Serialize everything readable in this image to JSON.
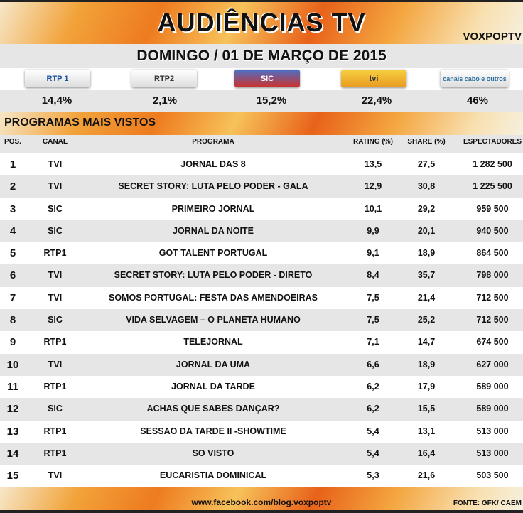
{
  "header": {
    "title": "AUDIÊNCIAS TV",
    "brand": "VOXPOPTV",
    "date": "DOMINGO / 01 DE MARÇO DE 2015"
  },
  "channels": [
    {
      "logo": "RTP 1",
      "share": "14,4%"
    },
    {
      "logo": "RTP2",
      "share": "2,1%"
    },
    {
      "logo": "SIC",
      "share": "15,2%"
    },
    {
      "logo": "tvi",
      "share": "22,4%"
    },
    {
      "logo": "canais cabo e outros",
      "share": "46%"
    }
  ],
  "section_title": "PROGRAMAS MAIS VISTOS",
  "columns": [
    "POS.",
    "CANAL",
    "PROGRAMA",
    "RATING (%)",
    "SHARE (%)",
    "ESPECTADORES"
  ],
  "rows": [
    [
      "1",
      "TVI",
      "JORNAL DAS 8",
      "13,5",
      "27,5",
      "1 282 500"
    ],
    [
      "2",
      "TVI",
      "SECRET STORY: LUTA PELO PODER - GALA",
      "12,9",
      "30,8",
      "1 225 500"
    ],
    [
      "3",
      "SIC",
      "PRIMEIRO JORNAL",
      "10,1",
      "29,2",
      "959 500"
    ],
    [
      "4",
      "SIC",
      "JORNAL DA NOITE",
      "9,9",
      "20,1",
      "940 500"
    ],
    [
      "5",
      "RTP1",
      "GOT TALENT PORTUGAL",
      "9,1",
      "18,9",
      "864 500"
    ],
    [
      "6",
      "TVI",
      "SECRET STORY: LUTA PELO PODER - DIRETO",
      "8,4",
      "35,7",
      "798 000"
    ],
    [
      "7",
      "TVI",
      "SOMOS PORTUGAL: FESTA DAS AMENDOEIRAS",
      "7,5",
      "21,4",
      "712 500"
    ],
    [
      "8",
      "SIC",
      "VIDA SELVAGEM – O PLANETA HUMANO",
      "7,5",
      "25,2",
      "712 500"
    ],
    [
      "9",
      "RTP1",
      "TELEJORNAL",
      "7,1",
      "14,7",
      "674 500"
    ],
    [
      "10",
      "TVI",
      "JORNAL DA UMA",
      "6,6",
      "18,9",
      "627 000"
    ],
    [
      "11",
      "RTP1",
      "JORNAL DA TARDE",
      "6,2",
      "17,9",
      "589 000"
    ],
    [
      "12",
      "SIC",
      "ACHAS QUE SABES DANÇAR?",
      "6,2",
      "15,5",
      "589 000"
    ],
    [
      "13",
      "RTP1",
      "SESSAO DA TARDE II -SHOWTIME",
      "5,4",
      "13,1",
      "513 000"
    ],
    [
      "14",
      "RTP1",
      "SO VISTO",
      "5,4",
      "16,4",
      "513 000"
    ],
    [
      "15",
      "TVI",
      "EUCARISTIA DOMINICAL",
      "5,3",
      "21,6",
      "503 500"
    ]
  ],
  "footer": {
    "link": "www.facebook.com/blog.voxpoptv",
    "source": "FONTE: GFK/ CAEM"
  }
}
